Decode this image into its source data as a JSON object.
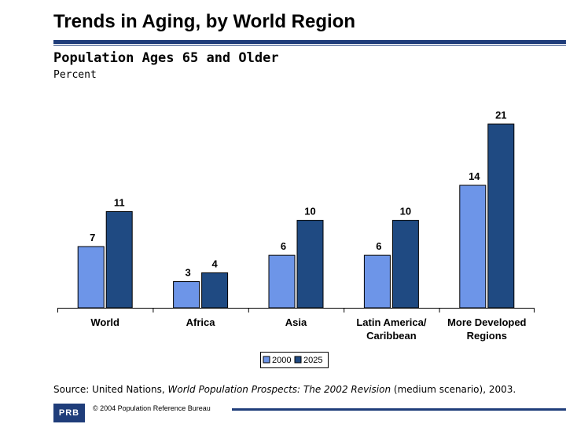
{
  "title": "Trends in Aging, by World Region",
  "subtitle": "Population Ages 65 and Older",
  "unit_label": "Percent",
  "source": {
    "prefix": "Source: United Nations,",
    "italic": "World Population Prospects: The 2002 Revision",
    "suffix": "(medium scenario), 2003."
  },
  "footer": {
    "logo_text": "PRB",
    "copyright": "© 2004 Population Reference Bureau"
  },
  "colors": {
    "series_2000": "#6d95e8",
    "series_2025": "#1f4a82",
    "accent": "#1f3d7a"
  },
  "chart_data": {
    "type": "bar",
    "title": "Population Ages 65 and Older",
    "ylabel": "Percent",
    "xlabel": "",
    "categories": [
      [
        "World"
      ],
      [
        "Africa"
      ],
      [
        "Asia"
      ],
      [
        "Latin America/",
        "Caribbean"
      ],
      [
        "More Developed",
        "Regions"
      ]
    ],
    "series": [
      {
        "name": "2000",
        "values": [
          7,
          3,
          6,
          6,
          14
        ]
      },
      {
        "name": "2025",
        "values": [
          11,
          4,
          10,
          10,
          21
        ]
      }
    ],
    "ylim": [
      0,
      21
    ],
    "grid": false,
    "legend_position": "bottom"
  }
}
